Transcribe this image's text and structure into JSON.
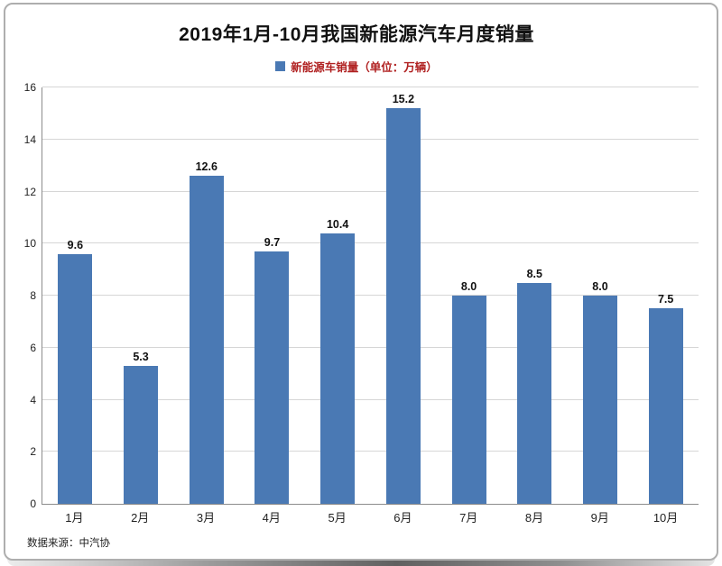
{
  "chart_data": {
    "type": "bar",
    "title": "2019年1月-10月我国新能源汽车月度销量",
    "legend": "新能源车销量（单位：万辆）",
    "categories": [
      "1月",
      "2月",
      "3月",
      "4月",
      "5月",
      "6月",
      "7月",
      "8月",
      "9月",
      "10月"
    ],
    "values": [
      9.6,
      5.3,
      12.6,
      9.7,
      10.4,
      15.2,
      8.0,
      8.5,
      8.0,
      7.5
    ],
    "value_decimals": 1,
    "ylabel": "",
    "xlabel": "",
    "ylim": [
      0,
      16
    ],
    "ytick_step": 2,
    "grid": true,
    "legend_position": "top",
    "colors": {
      "bar": "#4a79b4",
      "legend_text": "#b02020",
      "gridline": "#d6d6d6"
    }
  },
  "footer": {
    "source_note": "数据来源：中汽协"
  }
}
